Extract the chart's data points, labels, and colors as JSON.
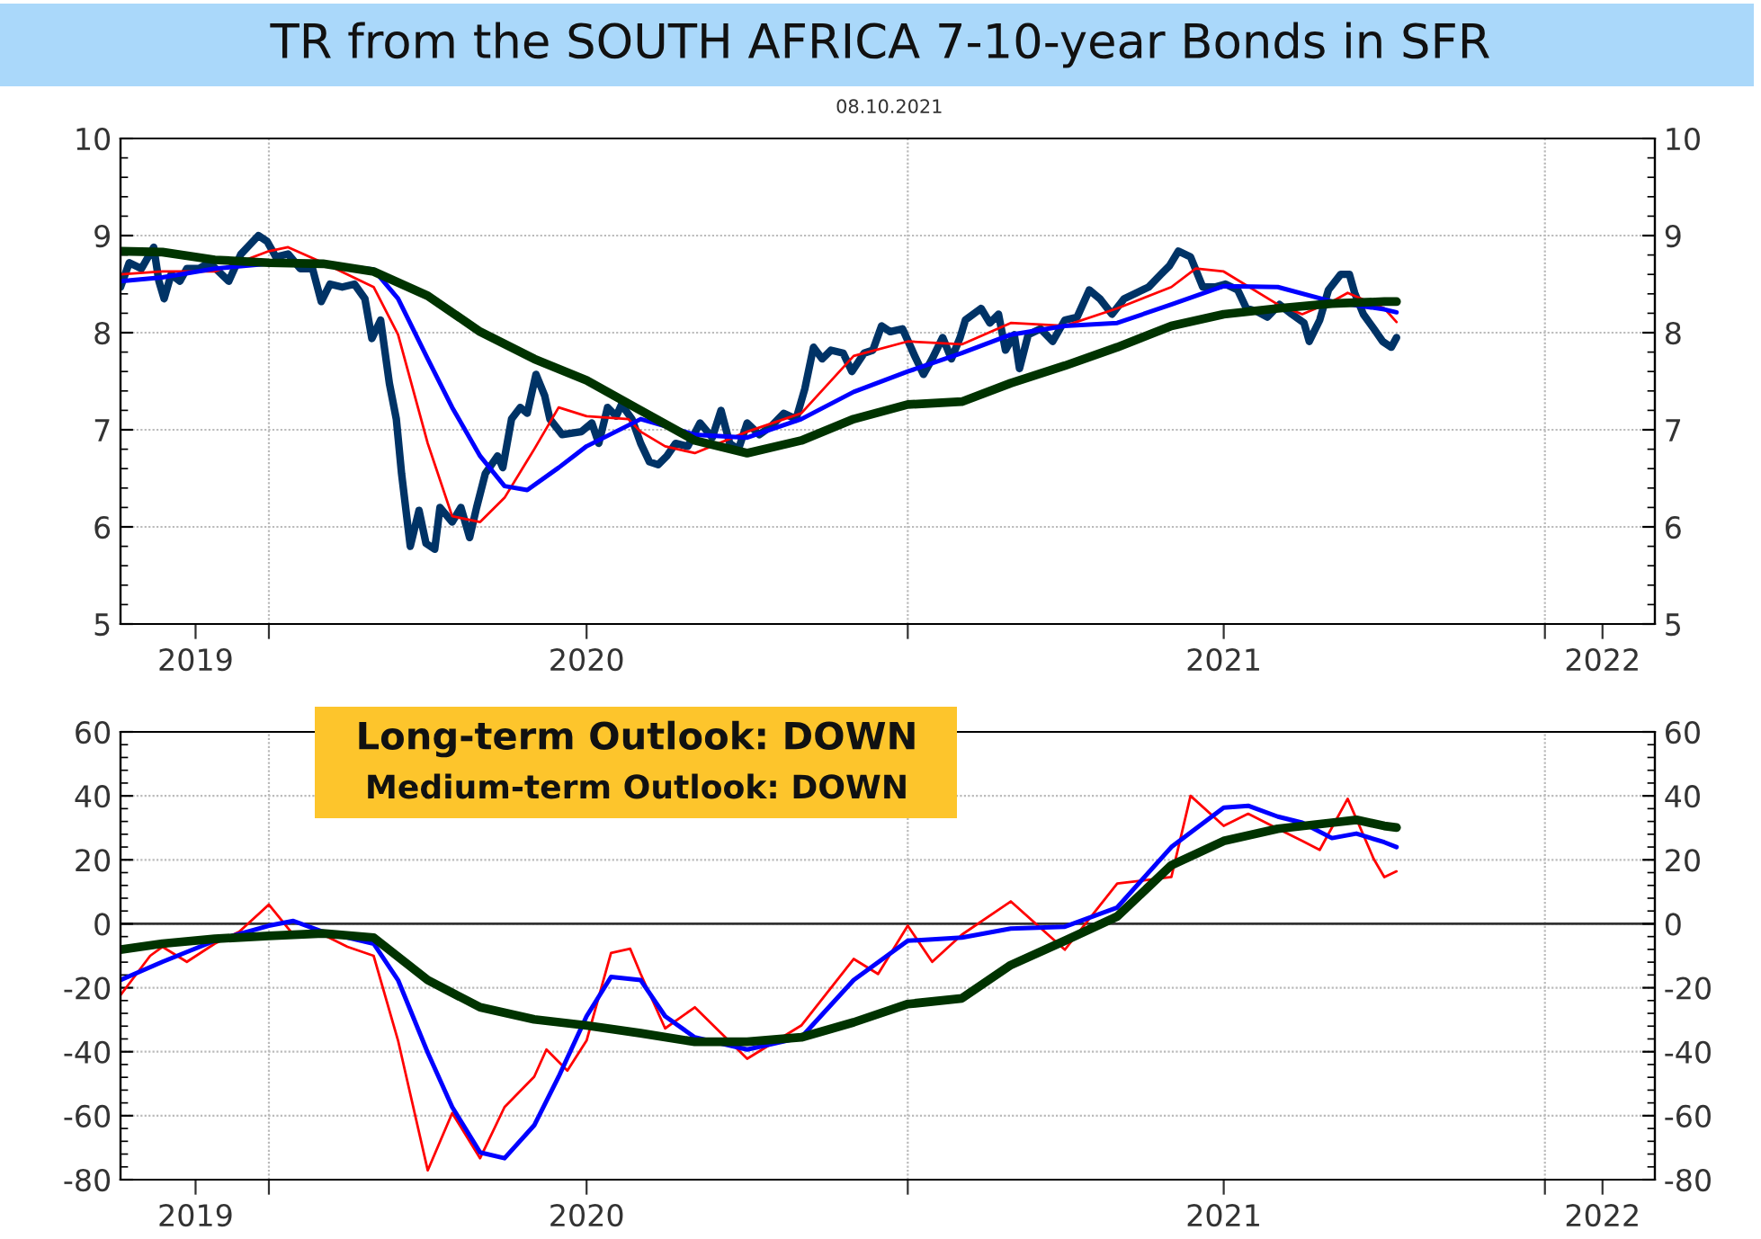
{
  "chart_data": [
    {
      "type": "line",
      "title": "TR from the SOUTH AFRICA 7-10-year Bonds in SFR",
      "subtitle": "08.10.2021",
      "xlim": [
        "2019-10-08",
        "2022-03-05"
      ],
      "xticks": [
        {
          "value": "2019-11-20",
          "label": "2019"
        },
        {
          "value": "2020-01-01",
          "label": null
        },
        {
          "value": "2020-07-01",
          "label": "2020"
        },
        {
          "value": "2021-01-01",
          "label": null
        },
        {
          "value": "2021-07-01",
          "label": "2021"
        },
        {
          "value": "2022-01-01",
          "label": null
        },
        {
          "value": "2022-02-03",
          "label": "2022"
        }
      ],
      "ylim": [
        5,
        10
      ],
      "yticks": [
        5,
        6,
        7,
        8,
        9,
        10
      ],
      "y2lim": [
        5,
        10
      ],
      "y2ticks": [
        5,
        6,
        7,
        8,
        9,
        10
      ],
      "grid": true,
      "legend": false,
      "series": [
        {
          "color": "#003366",
          "x": [
            "2019-10-08",
            "2019-10-13",
            "2019-10-20",
            "2019-10-27",
            "2019-10-30",
            "2019-11-02",
            "2019-11-06",
            "2019-11-11",
            "2019-11-15",
            "2019-11-22",
            "2019-11-28",
            "2019-12-09",
            "2019-12-16",
            "2019-12-26",
            "2019-12-31",
            "2020-01-05",
            "2020-01-12",
            "2020-01-19",
            "2020-01-26",
            "2020-01-31",
            "2020-02-05",
            "2020-02-12",
            "2020-02-19",
            "2020-02-25",
            "2020-02-29",
            "2020-03-05",
            "2020-03-10",
            "2020-03-14",
            "2020-03-17",
            "2020-03-22",
            "2020-03-27",
            "2020-03-31",
            "2020-04-05",
            "2020-04-08",
            "2020-04-15",
            "2020-04-20",
            "2020-04-25",
            "2020-04-29",
            "2020-05-04",
            "2020-05-11",
            "2020-05-14",
            "2020-05-19",
            "2020-05-24",
            "2020-05-28",
            "2020-06-02",
            "2020-06-07",
            "2020-06-10",
            "2020-06-17",
            "2020-06-28",
            "2020-07-04",
            "2020-07-08",
            "2020-07-13",
            "2020-07-18",
            "2020-07-21",
            "2020-07-27",
            "2020-08-01",
            "2020-08-06",
            "2020-08-11",
            "2020-08-16",
            "2020-08-21",
            "2020-08-28",
            "2020-09-04",
            "2020-09-11",
            "2020-09-16",
            "2020-09-21",
            "2020-09-26",
            "2020-10-01",
            "2020-10-08",
            "2020-10-15",
            "2020-10-22",
            "2020-10-29",
            "2020-11-03",
            "2020-11-08",
            "2020-11-13",
            "2020-11-18",
            "2020-11-25",
            "2020-11-30",
            "2020-12-07",
            "2020-12-12",
            "2020-12-17",
            "2020-12-22",
            "2020-12-29",
            "2021-01-05",
            "2021-01-10",
            "2021-01-15",
            "2021-01-21",
            "2021-01-26",
            "2021-01-31",
            "2021-02-03",
            "2021-02-12",
            "2021-02-17",
            "2021-02-22",
            "2021-02-26",
            "2021-03-03",
            "2021-03-06",
            "2021-03-11",
            "2021-03-18",
            "2021-03-25",
            "2021-04-01",
            "2021-04-08",
            "2021-04-15",
            "2021-04-21",
            "2021-04-28",
            "2021-05-05",
            "2021-05-12",
            "2021-05-19",
            "2021-05-26",
            "2021-05-31",
            "2021-06-05",
            "2021-06-12",
            "2021-06-19",
            "2021-06-26",
            "2021-07-02",
            "2021-07-09",
            "2021-07-14",
            "2021-07-20",
            "2021-07-26",
            "2021-08-02",
            "2021-08-09",
            "2021-08-16",
            "2021-08-19",
            "2021-08-25",
            "2021-08-30",
            "2021-09-06",
            "2021-09-11",
            "2021-09-14",
            "2021-09-19",
            "2021-09-25",
            "2021-09-30",
            "2021-10-05",
            "2021-10-08"
          ],
          "values": [
            8.47,
            8.72,
            8.66,
            8.88,
            8.53,
            8.35,
            8.6,
            8.53,
            8.66,
            8.66,
            8.72,
            8.53,
            8.81,
            9.0,
            8.94,
            8.78,
            8.81,
            8.66,
            8.66,
            8.32,
            8.5,
            8.47,
            8.5,
            8.35,
            7.94,
            8.13,
            7.48,
            7.11,
            6.55,
            5.8,
            6.17,
            5.83,
            5.77,
            6.2,
            6.05,
            6.2,
            5.89,
            6.2,
            6.55,
            6.73,
            6.61,
            7.11,
            7.23,
            7.17,
            7.57,
            7.35,
            7.11,
            6.95,
            6.98,
            7.07,
            6.86,
            7.23,
            7.14,
            7.26,
            7.11,
            6.86,
            6.67,
            6.64,
            6.73,
            6.86,
            6.83,
            7.07,
            6.92,
            7.2,
            6.86,
            6.8,
            7.07,
            6.95,
            7.04,
            7.17,
            7.11,
            7.42,
            7.85,
            7.73,
            7.82,
            7.79,
            7.6,
            7.79,
            7.82,
            8.07,
            8.01,
            8.04,
            7.76,
            7.57,
            7.73,
            7.95,
            7.73,
            7.95,
            8.13,
            8.25,
            8.1,
            8.19,
            7.82,
            7.98,
            7.63,
            7.98,
            8.04,
            7.91,
            8.13,
            8.16,
            8.44,
            8.35,
            8.19,
            8.35,
            8.41,
            8.47,
            8.6,
            8.69,
            8.84,
            8.78,
            8.47,
            8.47,
            8.5,
            8.44,
            8.25,
            8.22,
            8.16,
            8.29,
            8.19,
            8.1,
            7.91,
            8.13,
            8.44,
            8.6,
            8.6,
            8.41,
            8.19,
            8.04,
            7.91,
            7.85,
            7.95
          ]
        },
        {
          "color": "#ff0000",
          "x": [
            "2019-10-08",
            "2019-11-01",
            "2019-12-01",
            "2020-01-01",
            "2020-01-12",
            "2020-02-01",
            "2020-03-01",
            "2020-03-15",
            "2020-04-01",
            "2020-04-15",
            "2020-05-01",
            "2020-05-15",
            "2020-06-01",
            "2020-06-15",
            "2020-07-01",
            "2020-07-25",
            "2020-08-01",
            "2020-08-15",
            "2020-09-01",
            "2020-10-01",
            "2020-11-01",
            "2020-12-01",
            "2021-01-01",
            "2021-02-01",
            "2021-03-01",
            "2021-04-01",
            "2021-05-01",
            "2021-06-01",
            "2021-06-15",
            "2021-07-01",
            "2021-08-01",
            "2021-08-15",
            "2021-09-01",
            "2021-09-10",
            "2021-10-01",
            "2021-10-08"
          ],
          "values": [
            8.6,
            8.63,
            8.63,
            8.84,
            8.88,
            8.72,
            8.47,
            7.98,
            6.86,
            6.11,
            6.05,
            6.3,
            6.8,
            7.23,
            7.14,
            7.11,
            6.98,
            6.83,
            6.76,
            6.98,
            7.17,
            7.76,
            7.91,
            7.88,
            8.1,
            8.07,
            8.25,
            8.47,
            8.66,
            8.63,
            8.29,
            8.19,
            8.32,
            8.41,
            8.25,
            8.11
          ]
        },
        {
          "color": "#0000ff",
          "x": [
            "2019-10-08",
            "2019-11-01",
            "2019-12-01",
            "2020-01-01",
            "2020-02-01",
            "2020-03-01",
            "2020-03-15",
            "2020-04-01",
            "2020-04-15",
            "2020-05-01",
            "2020-05-15",
            "2020-05-28",
            "2020-06-15",
            "2020-07-01",
            "2020-08-01",
            "2020-09-01",
            "2020-10-01",
            "2020-11-01",
            "2020-12-01",
            "2021-01-01",
            "2021-02-01",
            "2021-03-01",
            "2021-04-01",
            "2021-05-01",
            "2021-06-01",
            "2021-07-01",
            "2021-08-01",
            "2021-09-01",
            "2021-10-01",
            "2021-10-08"
          ],
          "values": [
            8.53,
            8.57,
            8.66,
            8.71,
            8.71,
            8.65,
            8.35,
            7.73,
            7.23,
            6.73,
            6.42,
            6.38,
            6.61,
            6.83,
            7.11,
            6.95,
            6.92,
            7.11,
            7.39,
            7.6,
            7.79,
            7.98,
            8.07,
            8.1,
            8.29,
            8.48,
            8.47,
            8.32,
            8.24,
            8.21
          ]
        },
        {
          "color": "#003300",
          "x": [
            "2019-10-08",
            "2019-11-01",
            "2019-12-01",
            "2020-01-01",
            "2020-02-01",
            "2020-03-01",
            "2020-04-01",
            "2020-05-01",
            "2020-06-01",
            "2020-07-01",
            "2020-08-01",
            "2020-09-01",
            "2020-10-01",
            "2020-11-01",
            "2020-12-01",
            "2021-01-01",
            "2021-02-01",
            "2021-03-01",
            "2021-04-01",
            "2021-05-01",
            "2021-06-01",
            "2021-07-01",
            "2021-08-01",
            "2021-09-01",
            "2021-10-01",
            "2021-10-08"
          ],
          "values": [
            8.84,
            8.83,
            8.75,
            8.72,
            8.71,
            8.63,
            8.38,
            8.01,
            7.73,
            7.51,
            7.2,
            6.89,
            6.76,
            6.89,
            7.11,
            7.26,
            7.29,
            7.48,
            7.66,
            7.85,
            8.07,
            8.19,
            8.25,
            8.3,
            8.32,
            8.32
          ]
        }
      ]
    },
    {
      "type": "line",
      "xlim": [
        "2019-10-08",
        "2022-03-05"
      ],
      "xticks": [
        {
          "value": "2019-11-20",
          "label": "2019"
        },
        {
          "value": "2020-01-01",
          "label": null
        },
        {
          "value": "2020-07-01",
          "label": "2020"
        },
        {
          "value": "2021-01-01",
          "label": null
        },
        {
          "value": "2021-07-01",
          "label": "2021"
        },
        {
          "value": "2022-01-01",
          "label": null
        },
        {
          "value": "2022-02-03",
          "label": "2022"
        }
      ],
      "ylim": [
        -80,
        60
      ],
      "yticks": [
        -80,
        -60,
        -40,
        -20,
        0,
        20,
        40,
        60
      ],
      "y2lim": [
        -80,
        60
      ],
      "y2ticks": [
        -80,
        -60,
        -40,
        -20,
        0,
        20,
        40,
        60
      ],
      "grid": true,
      "legend": false,
      "annotations": [
        "Long-term Outlook: DOWN",
        "Medium-term Outlook: DOWN"
      ],
      "ref_lines": [
        {
          "axis": "y",
          "value": 0,
          "color": "#333333"
        }
      ],
      "series": [
        {
          "color": "#ff0000",
          "x": [
            "2019-10-08",
            "2019-10-25",
            "2019-11-01",
            "2019-11-15",
            "2019-12-01",
            "2019-12-15",
            "2020-01-01",
            "2020-01-15",
            "2020-02-01",
            "2020-02-15",
            "2020-03-01",
            "2020-03-15",
            "2020-04-01",
            "2020-04-15",
            "2020-05-01",
            "2020-05-15",
            "2020-06-01",
            "2020-06-08",
            "2020-06-20",
            "2020-07-01",
            "2020-07-15",
            "2020-07-26",
            "2020-08-01",
            "2020-08-15",
            "2020-09-01",
            "2020-09-15",
            "2020-10-01",
            "2020-11-01",
            "2020-12-01",
            "2020-12-15",
            "2021-01-01",
            "2021-01-15",
            "2021-02-01",
            "2021-03-01",
            "2021-04-01",
            "2021-05-01",
            "2021-06-01",
            "2021-06-12",
            "2021-07-01",
            "2021-07-15",
            "2021-08-01",
            "2021-08-15",
            "2021-08-25",
            "2021-09-10",
            "2021-09-25",
            "2021-10-01",
            "2021-10-08"
          ],
          "values": [
            -22.3,
            -10,
            -7.2,
            -11.9,
            -6.2,
            -2.5,
            6.0,
            -3.4,
            -3.4,
            -7.2,
            -10,
            -36.5,
            -77.1,
            -59.2,
            -73.3,
            -57.3,
            -47.8,
            -39.3,
            -45.9,
            -36.5,
            -9.1,
            -7.8,
            -15.7,
            -32.7,
            -26.1,
            -33.6,
            -42.2,
            -31.8,
            -11,
            -15.7,
            -0.6,
            -11.9,
            -3.4,
            7.0,
            -8.1,
            12.6,
            14.6,
            40,
            30.6,
            34.4,
            29.7,
            25.9,
            23.1,
            39.1,
            20.2,
            14.6,
            16.4
          ]
        },
        {
          "color": "#0000ff",
          "x": [
            "2019-10-08",
            "2019-11-01",
            "2019-12-01",
            "2020-01-01",
            "2020-01-15",
            "2020-02-01",
            "2020-03-01",
            "2020-03-15",
            "2020-04-01",
            "2020-04-15",
            "2020-05-01",
            "2020-05-15",
            "2020-06-01",
            "2020-06-15",
            "2020-07-01",
            "2020-07-15",
            "2020-08-01",
            "2020-08-15",
            "2020-09-01",
            "2020-10-01",
            "2020-11-01",
            "2020-12-01",
            "2021-01-01",
            "2021-02-01",
            "2021-03-01",
            "2021-04-01",
            "2021-05-01",
            "2021-06-01",
            "2021-07-01",
            "2021-07-15",
            "2021-08-01",
            "2021-08-15",
            "2021-09-01",
            "2021-09-15",
            "2021-10-01",
            "2021-10-08"
          ],
          "values": [
            -17.6,
            -11.9,
            -5.3,
            -0.6,
            0.9,
            -2.5,
            -6.2,
            -17.6,
            -40.3,
            -57.3,
            -71.5,
            -73.3,
            -63,
            -47.8,
            -28.9,
            -16.6,
            -17.6,
            -28.9,
            -35.5,
            -39.3,
            -35.5,
            -17.6,
            -5.3,
            -4.3,
            -1.5,
            -0.9,
            5.1,
            24,
            36.3,
            36.9,
            33.5,
            31.6,
            26.8,
            28.2,
            25.5,
            24.0
          ]
        },
        {
          "color": "#003300",
          "x": [
            "2019-10-08",
            "2019-11-01",
            "2019-12-01",
            "2020-01-01",
            "2020-02-01",
            "2020-03-01",
            "2020-04-01",
            "2020-05-01",
            "2020-06-01",
            "2020-07-01",
            "2020-08-01",
            "2020-09-01",
            "2020-10-01",
            "2020-11-01",
            "2020-12-01",
            "2021-01-01",
            "2021-02-01",
            "2021-03-01",
            "2021-04-01",
            "2021-05-01",
            "2021-06-01",
            "2021-07-01",
            "2021-08-01",
            "2021-09-01",
            "2021-09-15",
            "2021-10-01",
            "2021-10-08"
          ],
          "values": [
            -8.1,
            -6.2,
            -4.7,
            -3.8,
            -3.0,
            -4.3,
            -17.6,
            -26.1,
            -29.9,
            -31.8,
            -34.2,
            -36.9,
            -36.9,
            -35.5,
            -30.8,
            -25.1,
            -23.3,
            -12.9,
            -5.3,
            2.3,
            18.3,
            25.9,
            29.7,
            31.6,
            32.5,
            30.6,
            30.1
          ]
        }
      ]
    }
  ]
}
